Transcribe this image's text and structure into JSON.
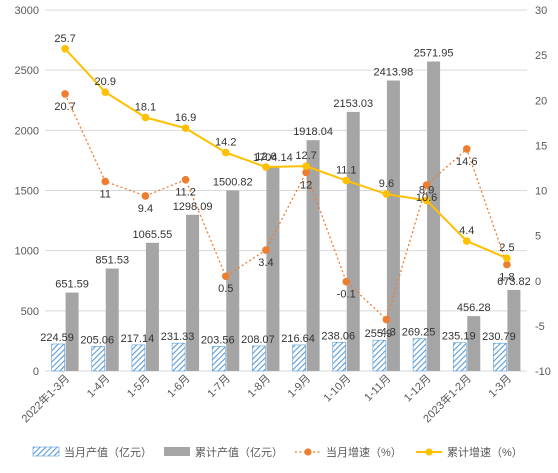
{
  "chart_data": {
    "type": "bar+line",
    "title": "",
    "categories": [
      "2022年1-3月",
      "1-4月",
      "1-5月",
      "1-6月",
      "1-7月",
      "1-8月",
      "1-9月",
      "1-10月",
      "1-11月",
      "1-12月",
      "2023年1-2月",
      "1-3月"
    ],
    "y_left": {
      "min": 0,
      "max": 3000,
      "step": 500,
      "ticks": [
        "0",
        "500",
        "1000",
        "1500",
        "2000",
        "2500",
        "3000"
      ]
    },
    "y_right": {
      "min": -10,
      "max": 30,
      "step": 5,
      "ticks": [
        "-10",
        "-5",
        "0",
        "5",
        "10",
        "15",
        "20",
        "25",
        "30"
      ]
    },
    "grid": true,
    "legend_position": "bottom",
    "series": [
      {
        "name": "当月产值（亿元）",
        "kind": "bar",
        "axis": "left",
        "color": "#5b9bd5",
        "style": "hatched",
        "values": [
          224.59,
          205.06,
          217.14,
          231.33,
          203.56,
          208.07,
          216.64,
          238.06,
          255.9,
          269.25,
          235.19,
          230.79
        ],
        "labels": [
          "224.59",
          "205.06",
          "217.14",
          "231.33",
          "203.56",
          "208.07",
          "216.64",
          "238.06",
          "255.9",
          "269.25",
          "235.19",
          "230.79"
        ]
      },
      {
        "name": "累计产值（亿元）",
        "kind": "bar",
        "axis": "left",
        "color": "#a5a5a5",
        "style": "solid",
        "values": [
          651.59,
          851.53,
          1065.55,
          1298.09,
          1500.82,
          1704.14,
          1918.04,
          2153.03,
          2413.98,
          2571.95,
          456.28,
          673.82
        ],
        "labels": [
          "651.59",
          "851.53",
          "1065.55",
          "1298.09",
          "1500.82",
          "1704.14",
          "1918.04",
          "2153.03",
          "2413.98",
          "2571.95",
          "456.28",
          "673.82"
        ]
      },
      {
        "name": "当月增速（%）",
        "kind": "line",
        "axis": "right",
        "color": "#ed7d31",
        "style": "dotted",
        "values": [
          20.7,
          11,
          9.4,
          11.2,
          0.5,
          3.4,
          12,
          -0.1,
          -4.3,
          10.6,
          14.6,
          1.8
        ],
        "labels": [
          "20.7",
          "11",
          "9.4",
          "11.2",
          "0.5",
          "3.4",
          "12",
          "-0.1",
          "-4.3",
          "10.6",
          "14.6",
          "1.8"
        ]
      },
      {
        "name": "累计增速（%）",
        "kind": "line",
        "axis": "right",
        "color": "#ffc000",
        "style": "solid",
        "values": [
          25.7,
          20.9,
          18.1,
          16.9,
          14.2,
          12.6,
          12.7,
          11.1,
          9.6,
          8.9,
          4.4,
          2.5
        ],
        "labels": [
          "25.7",
          "20.9",
          "18.1",
          "16.9",
          "14.2",
          "12.6",
          "12.7",
          "11.1",
          "9.6",
          "8.9",
          "4.4",
          "2.5"
        ]
      }
    ]
  }
}
